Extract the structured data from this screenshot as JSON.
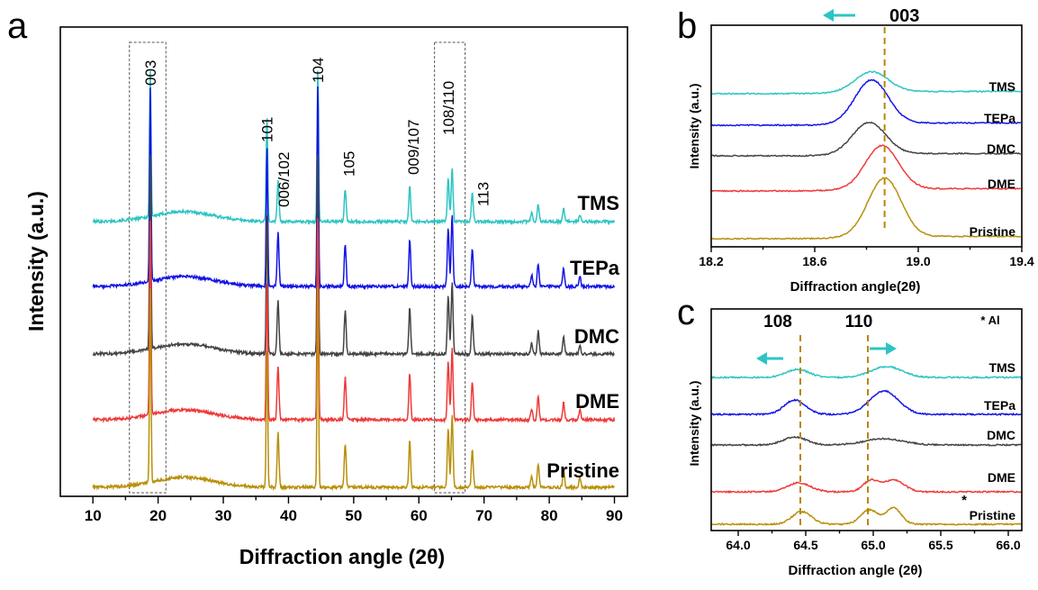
{
  "chart_data": [
    {
      "panel": "a",
      "type": "line",
      "xlabel": "Diffraction angle (2θ)",
      "ylabel": "Intensity (a.u.)",
      "xlim": [
        5,
        92
      ],
      "x_ticks": [
        10,
        20,
        30,
        40,
        50,
        60,
        70,
        80,
        90
      ],
      "peaks": [
        {
          "label": "003",
          "x": 18.8,
          "h": 1.0
        },
        {
          "label": "101",
          "x": 36.7,
          "h": 0.72
        },
        {
          "label": "006/102",
          "x": 38.4,
          "h": 0.28
        },
        {
          "label": "104",
          "x": 44.5,
          "h": 1.05
        },
        {
          "label": "105",
          "x": 48.7,
          "h": 0.22
        },
        {
          "label": "009/107",
          "x": 58.6,
          "h": 0.24
        },
        {
          "label": "108/110",
          "x": 64.5,
          "h": 0.3
        },
        {
          "label": "",
          "x": 65.1,
          "h": 0.37
        },
        {
          "label": "113",
          "x": 68.2,
          "h": 0.2
        },
        {
          "label": "",
          "x": 77.3,
          "h": 0.06
        },
        {
          "label": "",
          "x": 78.3,
          "h": 0.12
        },
        {
          "label": "",
          "x": 82.2,
          "h": 0.09
        },
        {
          "label": "",
          "x": 84.7,
          "h": 0.05
        }
      ],
      "highlight_boxes": [
        [
          15.6,
          21.2
        ],
        [
          62.4,
          67.1
        ]
      ],
      "series": [
        {
          "name": "TMS",
          "color": "#2ec4c4",
          "scale": 0.75
        },
        {
          "name": "TEPa",
          "color": "#1414e6",
          "scale": 1.0
        },
        {
          "name": "DMC",
          "color": "#444444",
          "scale": 1.0
        },
        {
          "name": "DME",
          "color": "#ee3a3a",
          "scale": 1.0
        },
        {
          "name": "Pristine",
          "color": "#b8900a",
          "scale": 1.0
        }
      ]
    },
    {
      "panel": "b",
      "type": "line",
      "xlabel": "Diffraction angle(2θ)",
      "ylabel": "Intensity (a.u.)",
      "xlim": [
        18.2,
        19.4
      ],
      "x_ticks": [
        18.2,
        18.6,
        19.0,
        19.4
      ],
      "x_tick_labels": [
        "18.2",
        "18.6",
        "19.0",
        "19.4"
      ],
      "annotation": "003",
      "reference_line_x": 18.87,
      "series": [
        {
          "name": "TMS",
          "color": "#2ec4c4",
          "center": 18.82
        },
        {
          "name": "TEPa",
          "color": "#1414e6",
          "center": 18.82
        },
        {
          "name": "DMC",
          "color": "#444444",
          "center": 18.81
        },
        {
          "name": "DME",
          "color": "#ee3a3a",
          "center": 18.86
        },
        {
          "name": "Pristine",
          "color": "#b8900a",
          "center": 18.87
        }
      ]
    },
    {
      "panel": "c",
      "type": "line",
      "xlabel": "Diffraction angle (2θ)",
      "ylabel": "Intensity (a.u.)",
      "xlim": [
        63.8,
        66.1
      ],
      "x_ticks": [
        64.0,
        64.5,
        65.0,
        65.5,
        66.0
      ],
      "x_tick_labels": [
        "64.0",
        "64.5",
        "65.0",
        "65.5",
        "66.0"
      ],
      "annotations": [
        "108",
        "110"
      ],
      "legend_note": "* Al",
      "reference_lines_x": [
        64.46,
        64.96
      ],
      "series": [
        {
          "name": "TMS",
          "color": "#2ec4c4"
        },
        {
          "name": "TEPa",
          "color": "#1414e6"
        },
        {
          "name": "DMC",
          "color": "#444444"
        },
        {
          "name": "DME",
          "color": "#ee3a3a"
        },
        {
          "name": "Pristine",
          "color": "#b8900a"
        }
      ]
    }
  ],
  "panel_letters": [
    "a",
    "b",
    "c"
  ]
}
